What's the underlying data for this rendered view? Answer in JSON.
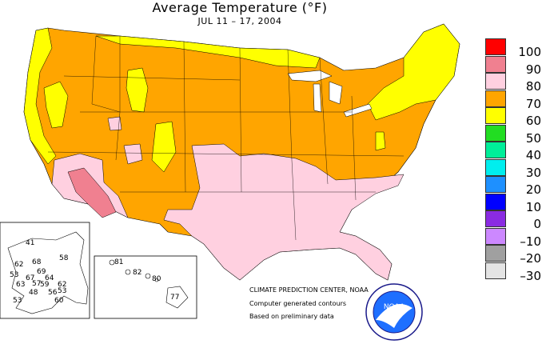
{
  "title": "Average Temperature (°F)",
  "subtitle": "JUL 11 – 17, 2004",
  "legend": [
    {
      "label": "100",
      "color": "#ff0000"
    },
    {
      "label": "90",
      "color": "#f08090"
    },
    {
      "label": "80",
      "color": "#ffd0e0"
    },
    {
      "label": "70",
      "color": "#ffa500"
    },
    {
      "label": "60",
      "color": "#ffff00"
    },
    {
      "label": "50",
      "color": "#22dd22"
    },
    {
      "label": "40",
      "color": "#00ee99"
    },
    {
      "label": "30",
      "color": "#00eeee"
    },
    {
      "label": "20",
      "color": "#1e90ff"
    },
    {
      "label": "10",
      "color": "#0000ff"
    },
    {
      "label": "0",
      "color": "#8a2be2"
    },
    {
      "label": "–10",
      "color": "#cc88ff"
    },
    {
      "label": "–20",
      "color": "#a0a0a0"
    },
    {
      "label": "–30",
      "color": "#e4e4e4"
    }
  ],
  "credits": {
    "line1": "CLIMATE PREDICTION CENTER, NOAA",
    "line2": "Computer generated contours",
    "line3": "Based on preliminary data"
  },
  "logo_text": "NOAA",
  "alaska_values": [
    "41",
    "58",
    "62",
    "68",
    "69",
    "53",
    "67",
    "64",
    "63",
    "57",
    "59",
    "62",
    "48",
    "56",
    "53",
    "60",
    "53"
  ],
  "hawaii_values": [
    "81",
    "82",
    "80",
    "77"
  ]
}
